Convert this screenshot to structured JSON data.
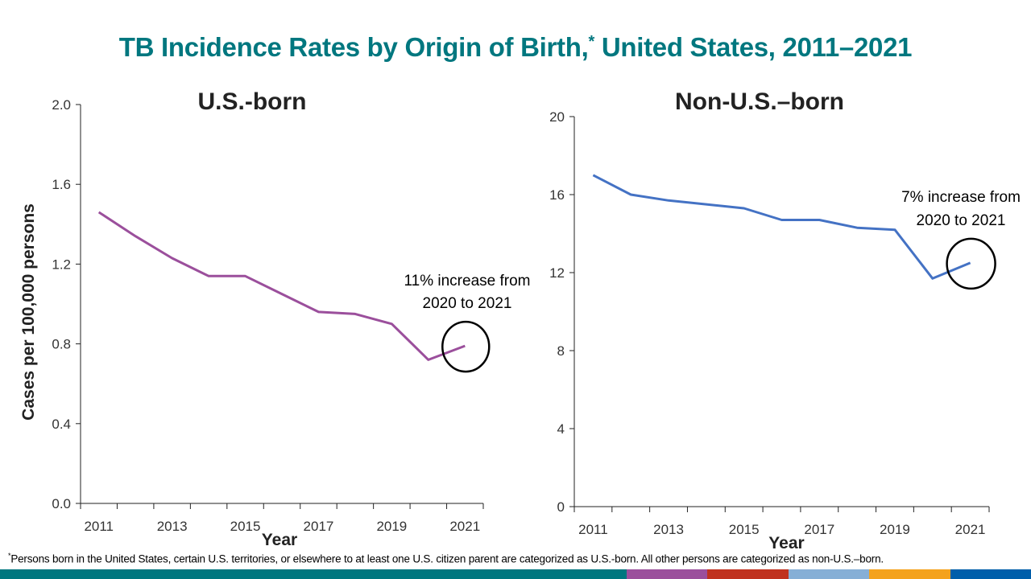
{
  "title": {
    "text": "TB Incidence Rates by Origin of Birth,",
    "marker": "*",
    "suffix": " United States, 2011–2021"
  },
  "footnote": {
    "marker": "*",
    "text": "Persons born in the United States, certain U.S. territories, or elsewhere to at least one U.S. citizen parent are categorized as U.S.-born. All other persons are categorized as non-U.S.–born."
  },
  "colorbar": {
    "segments": [
      {
        "color": "#00777f",
        "weight": 62
      },
      {
        "color": "#9b4f9c",
        "weight": 8
      },
      {
        "color": "#c0321f",
        "weight": 8
      },
      {
        "color": "#86afd6",
        "weight": 8
      },
      {
        "color": "#f4a21d",
        "weight": 8
      },
      {
        "color": "#005eaa",
        "weight": 8
      }
    ]
  },
  "chart_data": [
    {
      "type": "line",
      "title": "U.S.-born",
      "xlabel": "Year",
      "ylabel": "Cases per 100,000 persons",
      "x": [
        2011,
        2012,
        2013,
        2014,
        2015,
        2016,
        2017,
        2018,
        2019,
        2020,
        2021
      ],
      "x_tick_labels": [
        "2011",
        "2013",
        "2015",
        "2017",
        "2019",
        "2021"
      ],
      "y_ticks": [
        0.0,
        0.4,
        0.8,
        1.2,
        1.6,
        2.0
      ],
      "y_tick_labels": [
        "0.0",
        "0.4",
        "0.8",
        "1.2",
        "1.6",
        "2.0"
      ],
      "ylim": [
        0,
        2.0
      ],
      "grid": false,
      "series": [
        {
          "name": "U.S.-born",
          "color": "#9b4f9c",
          "values": [
            1.46,
            1.34,
            1.23,
            1.14,
            1.14,
            1.05,
            0.96,
            0.95,
            0.9,
            0.72,
            0.79
          ]
        }
      ],
      "annotation": {
        "line1": "11% increase from",
        "line2": "2020 to 2021",
        "highlight_year": 2021
      }
    },
    {
      "type": "line",
      "title": "Non-U.S.–born",
      "xlabel": "Year",
      "ylabel": "",
      "x": [
        2011,
        2012,
        2013,
        2014,
        2015,
        2016,
        2017,
        2018,
        2019,
        2020,
        2021
      ],
      "x_tick_labels": [
        "2011",
        "2013",
        "2015",
        "2017",
        "2019",
        "2021"
      ],
      "y_ticks": [
        0,
        4,
        8,
        12,
        16,
        20
      ],
      "y_tick_labels": [
        "0",
        "4",
        "8",
        "12",
        "16",
        "20"
      ],
      "ylim": [
        0,
        20
      ],
      "grid": false,
      "series": [
        {
          "name": "Non-U.S.–born",
          "color": "#4472c4",
          "values": [
            17.0,
            16.0,
            15.7,
            15.5,
            15.3,
            14.7,
            14.7,
            14.3,
            14.2,
            11.7,
            12.5
          ]
        }
      ],
      "annotation": {
        "line1": "7% increase from",
        "line2": "2020 to 2021",
        "highlight_year": 2021
      }
    }
  ]
}
